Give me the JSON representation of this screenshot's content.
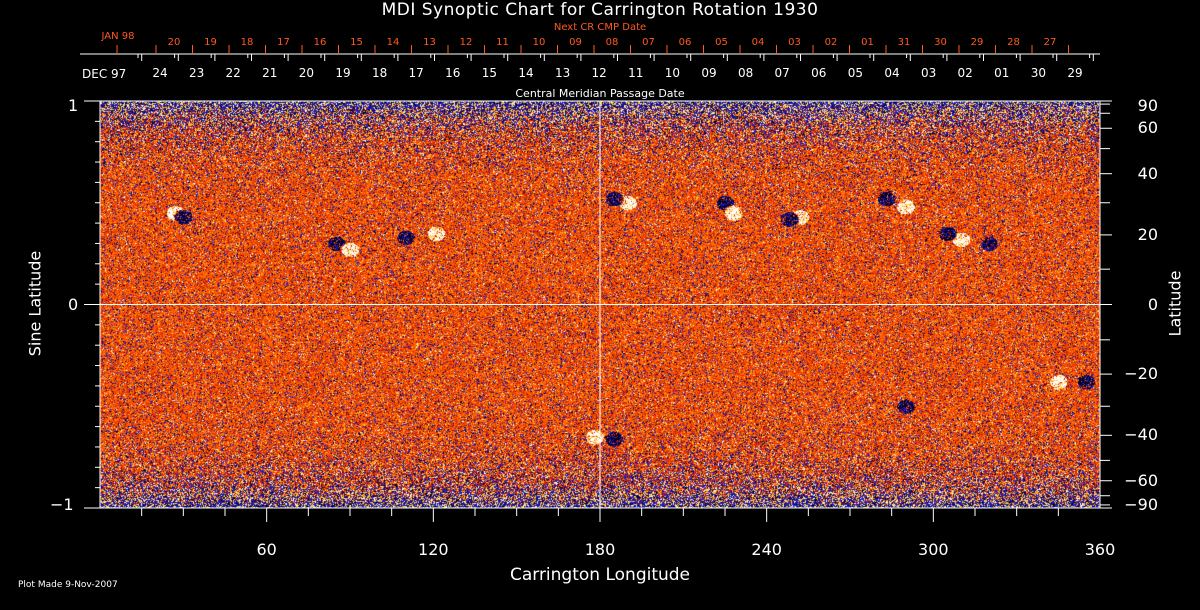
{
  "chart_data": {
    "type": "heatmap",
    "title": "MDI Synoptic Chart for Carrington Rotation 1930",
    "xlabel": "Carrington Longitude",
    "ylabel_left": "Sine Latitude",
    "ylabel_right": "Latitude",
    "xlim": [
      0,
      360
    ],
    "ylim": [
      -1,
      1
    ],
    "x_ticks": [
      "60",
      "120",
      "180",
      "240",
      "300",
      "360"
    ],
    "x_tick_values": [
      60,
      120,
      180,
      240,
      300,
      360
    ],
    "y_left_ticks": [
      "1",
      "0",
      "−1"
    ],
    "y_left_tick_values": [
      1,
      0,
      -1
    ],
    "y_right_ticks": [
      "90",
      "60",
      "40",
      "20",
      "0",
      "−20",
      "−40",
      "−60",
      "−90"
    ],
    "y_right_tick_values": [
      90,
      60,
      40,
      20,
      0,
      -20,
      -40,
      -60,
      -90
    ],
    "top_axis": {
      "label": "Central Meridian Passage Date",
      "month_label": "DEC 97",
      "days": [
        "24",
        "23",
        "22",
        "21",
        "20",
        "19",
        "18",
        "17",
        "16",
        "15",
        "14",
        "13",
        "12",
        "11",
        "10",
        "09",
        "08",
        "07",
        "06",
        "05",
        "04",
        "03",
        "02",
        "01",
        "30",
        "29"
      ]
    },
    "next_cr_axis": {
      "label": "Next CR CMP Date",
      "month_label": "JAN 98",
      "days": [
        "20",
        "19",
        "18",
        "17",
        "16",
        "15",
        "14",
        "13",
        "12",
        "11",
        "10",
        "09",
        "08",
        "07",
        "06",
        "05",
        "04",
        "03",
        "02",
        "01",
        "31",
        "30",
        "29",
        "28",
        "27"
      ]
    },
    "grid": "crosshair at longitude 180 and latitude 0",
    "colors": {
      "positive": "#ffffff",
      "background_high": "#ffd040",
      "background_mid": "#ff6000",
      "background_low": "#d02000",
      "negative": "#2020c0",
      "strong_negative": "#000030",
      "next_cr_axis": "#ff5a1e"
    }
  },
  "footer": {
    "plot_made": "Plot Made  9-Nov-2007"
  }
}
